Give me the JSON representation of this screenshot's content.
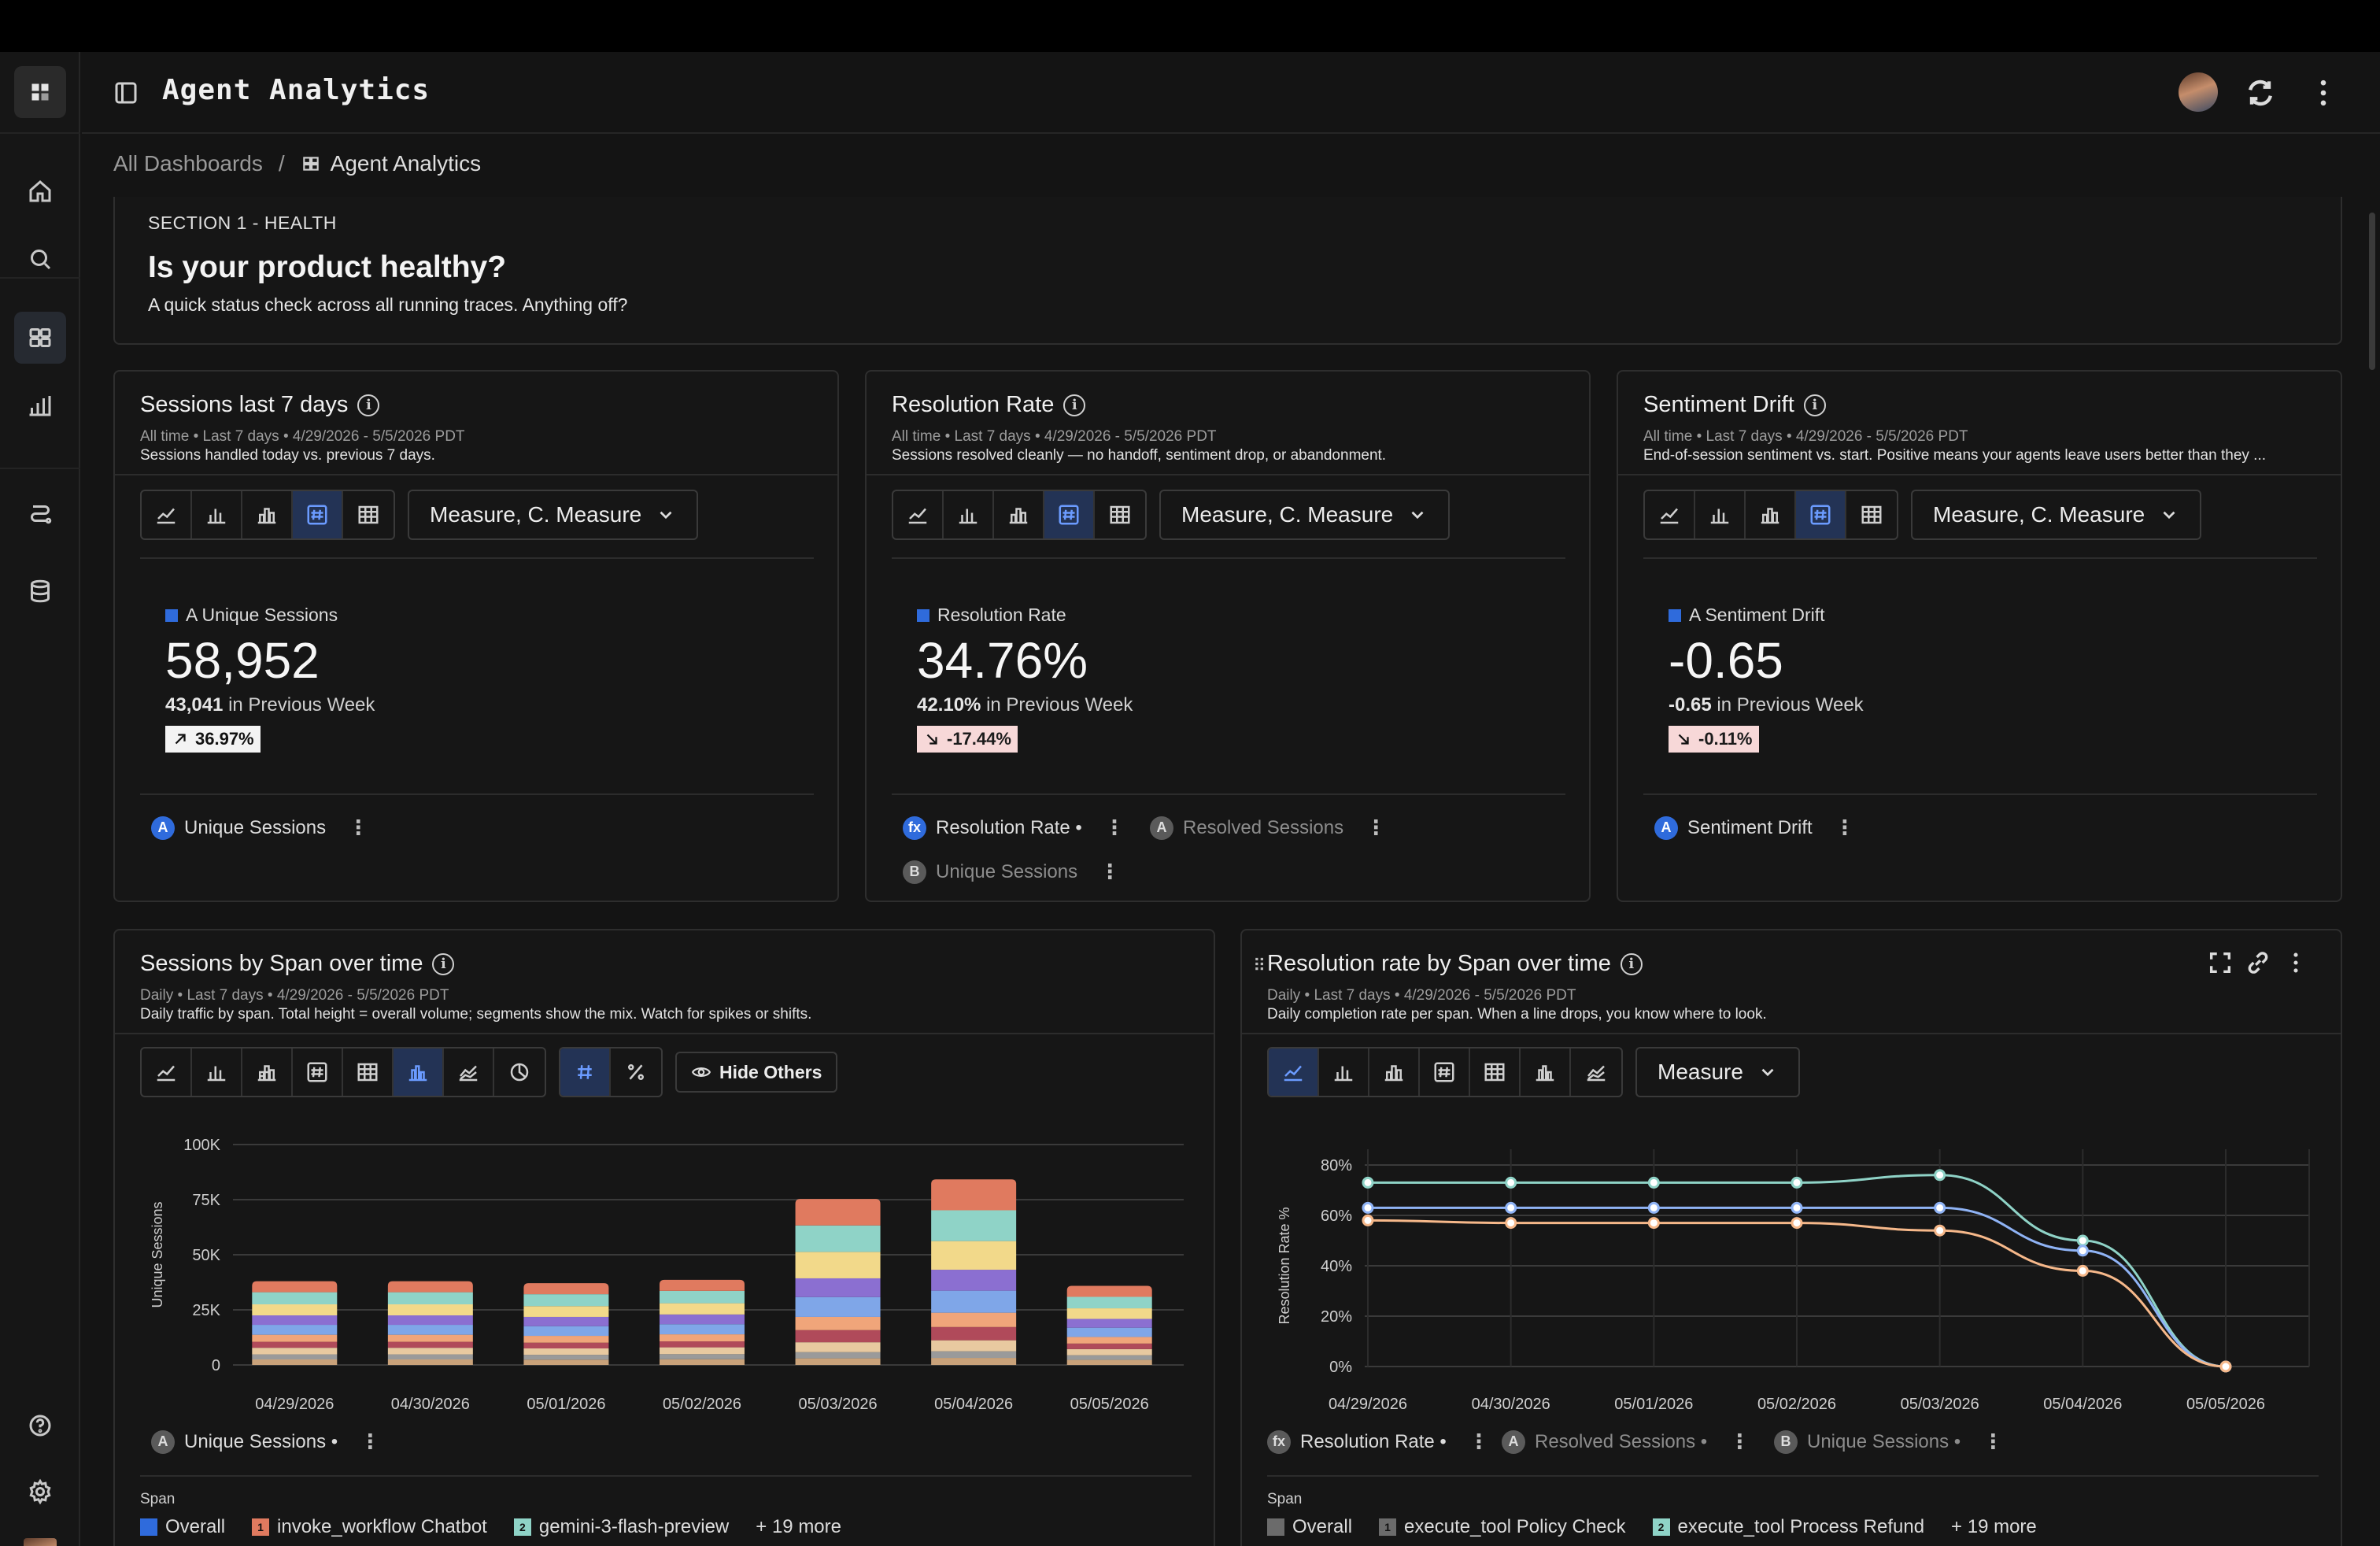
{
  "app": {
    "title": "Agent Analytics"
  },
  "breadcrumb": {
    "root": "All Dashboards",
    "separator": "/",
    "current": "Agent Analytics"
  },
  "section": {
    "kicker": "SECTION 1 - HEALTH",
    "title": "Is your product healthy?",
    "subtitle": "A quick status check across all running traces. Anything off?"
  },
  "toolbar": {
    "measure_label": "Measure, C. Measure",
    "measure_short": "Measure",
    "hide_others": "Hide Others"
  },
  "kpis": [
    {
      "title": "Sessions last 7 days",
      "meta": "All time • Last 7 days • 4/29/2026 - 5/5/2026 PDT",
      "desc": "Sessions handled today vs. previous 7 days.",
      "metric_label": "A Unique Sessions",
      "value": "58,952",
      "prev_value": "43,041",
      "prev_text": "in Previous Week",
      "delta": "36.97%",
      "delta_dir": "up",
      "legend": [
        {
          "badge": "A",
          "label": "Unique Sessions",
          "dim": false
        }
      ]
    },
    {
      "title": "Resolution Rate",
      "meta": "All time • Last 7 days • 4/29/2026 - 5/5/2026 PDT",
      "desc": "Sessions resolved cleanly — no handoff, sentiment drop, or abandonment.",
      "metric_label": "Resolution Rate",
      "value": "34.76%",
      "prev_value": "42.10%",
      "prev_text": "in Previous Week",
      "delta": "-17.44%",
      "delta_dir": "down",
      "legend": [
        {
          "badge": "fx",
          "label": "Resolution Rate •",
          "dim": false
        },
        {
          "badge": "A",
          "label": "Resolved Sessions",
          "dim": true
        },
        {
          "badge": "B",
          "label": "Unique Sessions",
          "dim": true
        }
      ]
    },
    {
      "title": "Sentiment Drift",
      "meta": "All time • Last 7 days • 4/29/2026 - 5/5/2026 PDT",
      "desc": "End-of-session sentiment vs. start. Positive means your agents leave users better than they ...",
      "metric_label": "A Sentiment Drift",
      "value": "-0.65",
      "prev_value": "-0.65",
      "prev_text": "in Previous Week",
      "delta": "-0.11%",
      "delta_dir": "down",
      "legend": [
        {
          "badge": "A",
          "label": "Sentiment Drift",
          "dim": false
        }
      ]
    }
  ],
  "charts": {
    "sessions": {
      "title": "Sessions by Span over time",
      "meta": "Daily • Last 7 days • 4/29/2026 - 5/5/2026 PDT",
      "desc": "Daily traffic by span. Total height = overall volume; segments show the mix. Watch for spikes or shifts.",
      "legend_label": "Unique Sessions •",
      "legend_badge": "A",
      "span_header": "Span",
      "span_items": [
        {
          "chip": "",
          "label": "Overall",
          "color": "#2f6bdc"
        },
        {
          "chip": "1",
          "label": "invoke_workflow Chatbot",
          "color": "#e07a5f"
        },
        {
          "chip": "2",
          "label": "gemini-3-flash-preview",
          "color": "#8fd3c7"
        }
      ],
      "more": "+ 19 more"
    },
    "resolution": {
      "title": "Resolution rate by Span over time",
      "meta": "Daily • Last 7 days • 4/29/2026 - 5/5/2026 PDT",
      "desc": "Daily completion rate per span. When a line drops, you know where to look.",
      "legend": [
        {
          "badge": "fx",
          "label": "Resolution Rate •",
          "dim": false
        },
        {
          "badge": "A",
          "label": "Resolved Sessions •",
          "dim": true
        },
        {
          "badge": "B",
          "label": "Unique Sessions •",
          "dim": true
        }
      ],
      "span_header": "Span",
      "span_items": [
        {
          "chip": "",
          "label": "Overall",
          "color": "#6b6b6b"
        },
        {
          "chip": "1",
          "label": "execute_tool Policy Check",
          "color": "#6b6b6b"
        },
        {
          "chip": "2",
          "label": "execute_tool Process Refund",
          "color": "#8fd3c7"
        }
      ],
      "more": "+ 19 more"
    }
  },
  "chart_data": [
    {
      "type": "bar",
      "stacked": true,
      "categories": [
        "04/29/2026",
        "04/30/2026",
        "05/01/2026",
        "05/02/2026",
        "05/03/2026",
        "05/04/2026",
        "05/05/2026"
      ],
      "ylabel": "Unique Sessions",
      "ylim": [
        0,
        100000
      ],
      "yticks": [
        "0",
        "25K",
        "50K",
        "75K",
        "100K"
      ],
      "grid": true,
      "series": [
        {
          "color": "#c9a27a",
          "values": [
            2500,
            2500,
            2400,
            2600,
            3000,
            3200,
            2300
          ]
        },
        {
          "color": "#9a9a9a",
          "values": [
            2300,
            2300,
            2200,
            2300,
            2800,
            3000,
            2100
          ]
        },
        {
          "color": "#e8c9a0",
          "values": [
            3000,
            3000,
            2900,
            3100,
            4500,
            5000,
            2800
          ]
        },
        {
          "color": "#b04a5a",
          "values": [
            2700,
            2700,
            2600,
            2700,
            5500,
            6000,
            2500
          ]
        },
        {
          "color": "#f0a57a",
          "values": [
            3200,
            3200,
            3100,
            3200,
            6000,
            6500,
            3000
          ]
        },
        {
          "color": "#7fa6e8",
          "values": [
            4500,
            4500,
            4400,
            4600,
            9000,
            10000,
            4200
          ]
        },
        {
          "color": "#8b6fd1",
          "values": [
            4300,
            4300,
            4200,
            4400,
            8500,
            9500,
            4000
          ]
        },
        {
          "color": "#f2d98a",
          "values": [
            5000,
            5000,
            4900,
            5100,
            12000,
            13000,
            4800
          ]
        },
        {
          "color": "#8fd3c7",
          "values": [
            5500,
            5500,
            5400,
            5600,
            12000,
            14000,
            5200
          ]
        },
        {
          "color": "#e07a5f",
          "values": [
            5000,
            5000,
            5000,
            5000,
            12000,
            14000,
            5000
          ]
        }
      ]
    },
    {
      "type": "line",
      "x": [
        "04/29/2026",
        "04/30/2026",
        "05/01/2026",
        "05/02/2026",
        "05/03/2026",
        "05/04/2026",
        "05/05/2026"
      ],
      "ylabel": "Resolution Rate %",
      "ylim": [
        0,
        80
      ],
      "yticks": [
        "0%",
        "20%",
        "40%",
        "60%",
        "80%"
      ],
      "grid": true,
      "series": [
        {
          "color": "#8fd3c7",
          "values": [
            73,
            73,
            73,
            73,
            76,
            50,
            0
          ]
        },
        {
          "color": "#8fb3f5",
          "values": [
            63,
            63,
            63,
            63,
            63,
            46,
            0
          ]
        },
        {
          "color": "#f6b88a",
          "values": [
            58,
            57,
            57,
            57,
            54,
            38,
            0
          ]
        }
      ]
    }
  ]
}
